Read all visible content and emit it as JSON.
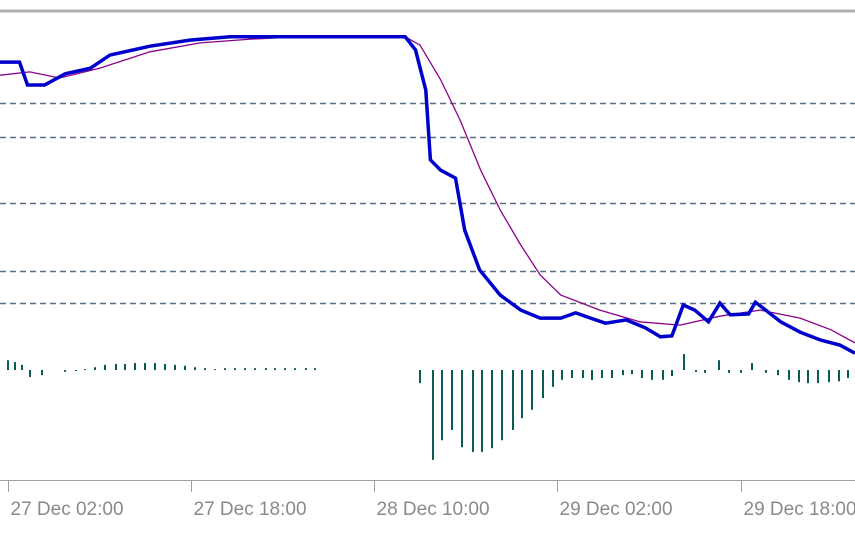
{
  "chart_data": [
    {
      "type": "line",
      "xlim": [
        1.3,
        76.0
      ],
      "xticks": [
        {
          "value": 2,
          "label": "27 Dec 02:00"
        },
        {
          "value": 18,
          "label": "27 Dec 18:00"
        },
        {
          "value": 34,
          "label": "28 Dec 10:00"
        },
        {
          "value": 50,
          "label": "29 Dec 02:00"
        },
        {
          "value": 66,
          "label": "29 Dec 18:00"
        }
      ],
      "ylim": [
        0,
        100
      ],
      "levels": [
        80.6,
        73.3,
        59.2,
        44.7,
        37.8
      ],
      "series": [
        {
          "color": "#8b008b",
          "x": [
            1.3,
            3.9,
            6.5,
            10.0,
            14.4,
            18.8,
            23.2,
            27.5,
            36.7,
            38.0,
            39.8,
            41.5,
            43.3,
            45.0,
            46.8,
            48.5,
            50.3,
            53.7,
            57.2,
            60.7,
            64.2,
            67.7,
            71.2,
            73.9,
            76.0
          ],
          "values": [
            86.5,
            87.2,
            85.9,
            88.0,
            91.5,
            93.4,
            94.2,
            94.7,
            94.7,
            92.9,
            85.5,
            76.9,
            66.2,
            57.7,
            50.2,
            43.8,
            39.5,
            36.3,
            33.8,
            33.1,
            35.0,
            36.3,
            34.6,
            32.1,
            29.3
          ]
        },
        {
          "color": "#0000cc",
          "x": [
            1.3,
            3.0,
            3.7,
            5.2,
            7.0,
            9.2,
            10.9,
            14.4,
            17.9,
            21.4,
            27.5,
            36.7,
            37.6,
            38.5,
            38.9,
            39.8,
            41.1,
            41.9,
            43.2,
            45.0,
            46.8,
            48.5,
            50.3,
            51.6,
            52.9,
            54.2,
            56.0,
            57.7,
            59.0,
            60.0,
            61.0,
            62.0,
            63.2,
            64.2,
            65.1,
            66.7,
            67.3,
            68.2,
            69.5,
            71.2,
            73.0,
            74.7,
            76.0
          ],
          "values": [
            89.3,
            89.3,
            84.4,
            84.4,
            86.8,
            88.0,
            90.8,
            92.7,
            94.0,
            94.7,
            94.7,
            94.7,
            91.9,
            83.3,
            68.4,
            66.2,
            64.5,
            53.4,
            44.9,
            39.5,
            36.3,
            34.6,
            34.6,
            35.7,
            34.6,
            33.5,
            34.2,
            32.5,
            30.6,
            30.8,
            37.4,
            36.3,
            33.8,
            37.8,
            35.3,
            35.5,
            38.0,
            36.3,
            33.8,
            31.6,
            29.9,
            28.8,
            27.1
          ]
        }
      ]
    },
    {
      "type": "bar",
      "color": "#0b5b55",
      "xlim": [
        1.3,
        76.0
      ],
      "ylim": [
        -23.5,
        76.5
      ],
      "x": [
        2.0,
        2.6,
        3.2,
        3.9,
        5.0,
        7.0,
        7.9,
        8.7,
        9.6,
        10.5,
        11.4,
        12.2,
        13.1,
        14.0,
        14.8,
        15.7,
        16.6,
        17.5,
        18.3,
        19.2,
        20.1,
        21.0,
        21.8,
        22.7,
        23.6,
        24.5,
        25.3,
        26.2,
        27.1,
        28.0,
        28.8,
        38.0,
        39.1,
        39.9,
        40.8,
        41.7,
        42.6,
        43.4,
        44.3,
        45.2,
        46.1,
        46.9,
        47.8,
        48.7,
        49.6,
        50.4,
        51.3,
        52.2,
        53.0,
        53.9,
        54.8,
        55.7,
        56.5,
        57.4,
        58.3,
        59.2,
        60.0,
        61.1,
        62.1,
        62.9,
        64.1,
        65.0,
        66.0,
        67.0,
        68.2,
        69.3,
        70.2,
        71.1,
        71.9,
        72.8,
        73.7,
        74.6,
        75.4
      ],
      "values": [
        2.1,
        1.7,
        1.1,
        -1.5,
        -1.1,
        -0.4,
        -0.2,
        0.2,
        0.6,
        1.1,
        1.3,
        1.3,
        1.5,
        1.5,
        1.5,
        1.3,
        1.1,
        0.9,
        0.6,
        0.4,
        0.2,
        0.4,
        0.4,
        0.4,
        0.4,
        0.4,
        0.4,
        0.4,
        0.4,
        0.4,
        0.4,
        -2.8,
        -19.2,
        -15.0,
        -12.8,
        -16.5,
        -17.5,
        -17.5,
        -16.7,
        -15.0,
        -12.8,
        -10.3,
        -8.5,
        -6.0,
        -3.6,
        -2.1,
        -1.7,
        -1.7,
        -2.1,
        -1.7,
        -1.7,
        -1.1,
        -0.9,
        -1.7,
        -2.1,
        -2.1,
        -1.3,
        3.4,
        -0.4,
        -0.6,
        2.1,
        -0.6,
        -0.6,
        1.5,
        -0.6,
        -1.1,
        -2.1,
        -2.6,
        -2.8,
        -2.8,
        -2.6,
        -2.4,
        -1.7
      ]
    }
  ]
}
